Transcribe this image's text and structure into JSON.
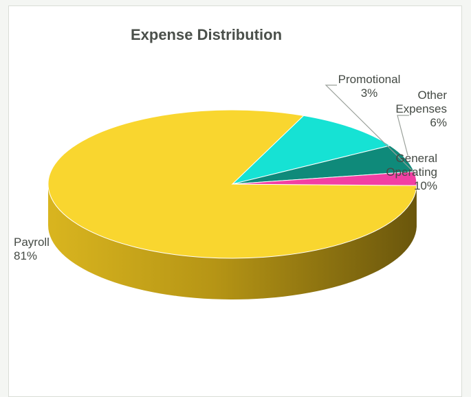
{
  "chart_data": {
    "type": "pie",
    "title": "Expense Distribution",
    "slices": [
      {
        "label": "Payroll",
        "label_lines": [
          "Payroll"
        ],
        "value": 81,
        "value_text": "81%",
        "color": "#f9d62f"
      },
      {
        "label": "General Operating",
        "label_lines": [
          "General",
          "Operating"
        ],
        "value": 10,
        "value_text": "10%",
        "color": "#16e2d4"
      },
      {
        "label": "Other Expenses",
        "label_lines": [
          "Other",
          "Expenses"
        ],
        "value": 6,
        "value_text": "6%",
        "color": "#0f8a7a"
      },
      {
        "label": "Promotional",
        "label_lines": [
          "Promotional"
        ],
        "value": 3,
        "value_text": "3%",
        "color": "#f23fa3"
      }
    ],
    "style": "3d",
    "legend": "none"
  }
}
